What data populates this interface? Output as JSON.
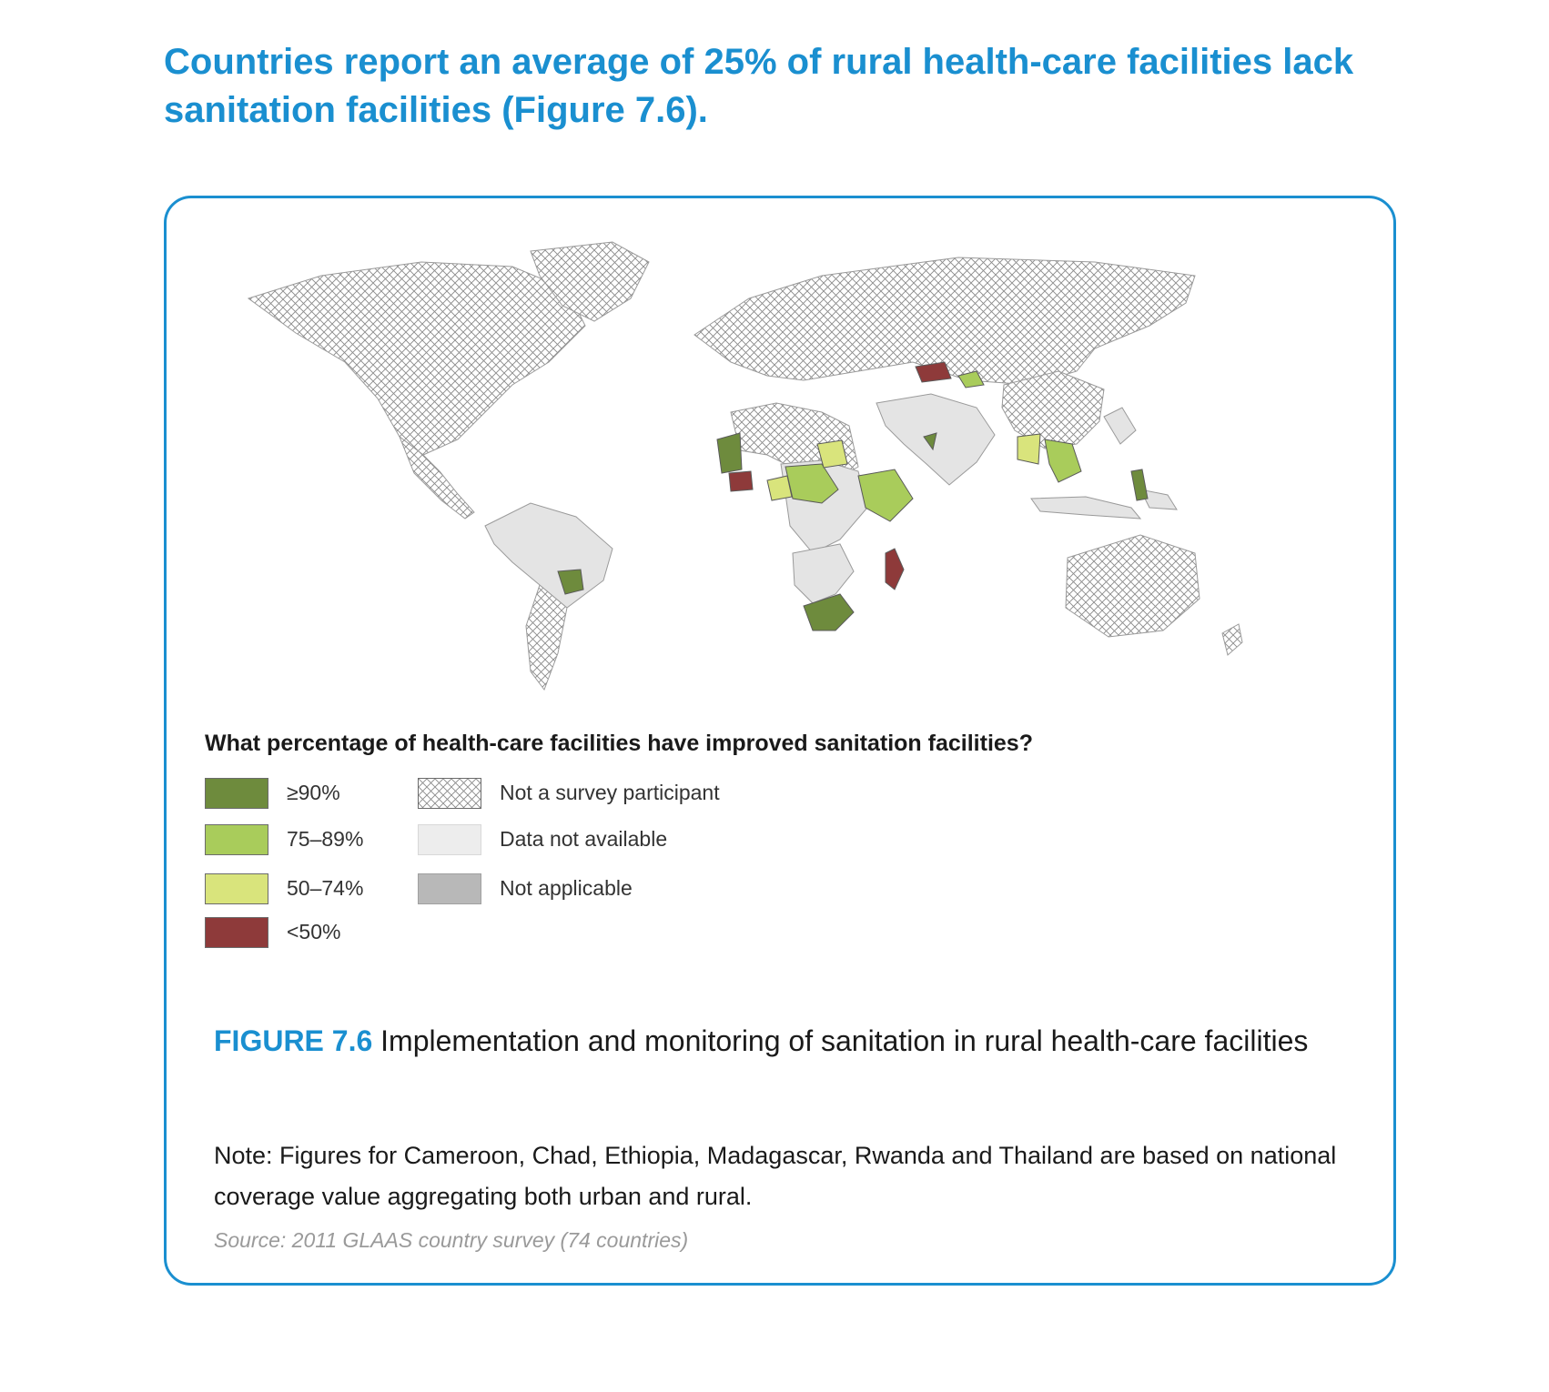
{
  "headline": "Countries report an average of 25% of rural health-care facilities lack sanitation facilities (Figure 7.6).",
  "legend": {
    "question": "What percentage of health-care facilities have improved sanitation facilities?",
    "items": [
      {
        "label": "≥90%",
        "color": "#6e8b3d"
      },
      {
        "label": "75–89%",
        "color": "#a9cc5b"
      },
      {
        "label": "50–74%",
        "color": "#d9e47c"
      },
      {
        "label": "<50%",
        "color": "#8e3a3a"
      },
      {
        "label": "Not a survey participant",
        "color": "crosshatch"
      },
      {
        "label": "Data not available",
        "color": "#ededed"
      },
      {
        "label": "Not applicable",
        "color": "#b8b8b8"
      }
    ]
  },
  "figure": {
    "number": "FIGURE 7.6",
    "title": "Implementation and monitoring of sanitation in rural health-care facilities"
  },
  "note": "Note: Figures for Cameroon, Chad, Ethiopia, Madagascar, Rwanda and Thailand are based on national coverage value aggregating both urban and rural.",
  "source": "Source: 2011 GLAAS country survey (74 countries)",
  "colors": {
    "accent": "#1a8fd0",
    "ge90": "#6e8b3d",
    "c75_89": "#a9cc5b",
    "c50_74": "#d9e47c",
    "lt50": "#8e3a3a",
    "not_available": "#ededed",
    "not_applicable": "#b8b8b8"
  }
}
